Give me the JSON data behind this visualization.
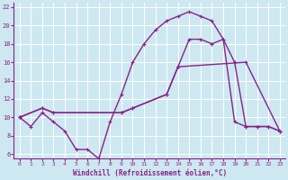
{
  "bg_color": "#cde8f0",
  "grid_color": "#b8d8e8",
  "line_color": "#882288",
  "xlabel": "Windchill (Refroidissement éolien,°C)",
  "xlim": [
    -0.5,
    23.5
  ],
  "ylim": [
    5.5,
    22.5
  ],
  "xticks": [
    0,
    1,
    2,
    3,
    4,
    5,
    6,
    7,
    8,
    9,
    10,
    11,
    12,
    13,
    14,
    15,
    16,
    17,
    18,
    19,
    20,
    21,
    22,
    23
  ],
  "yticks": [
    6,
    8,
    10,
    12,
    14,
    16,
    18,
    20,
    22
  ],
  "line1_x": [
    0,
    1,
    2,
    3,
    4,
    5,
    6,
    7,
    8,
    9,
    10,
    11,
    12,
    13,
    14,
    15,
    16,
    17,
    18,
    19,
    20,
    21,
    22,
    23
  ],
  "line1_y": [
    10,
    9,
    10.5,
    9.5,
    8.5,
    6.5,
    6.5,
    5.5,
    9.5,
    12.5,
    16,
    18,
    19.5,
    20.5,
    21,
    21.5,
    21,
    20.5,
    18.5,
    16,
    9,
    9,
    9,
    8.5
  ],
  "line2_x": [
    0,
    2,
    3,
    9,
    10,
    13,
    14,
    15,
    16,
    17,
    18,
    19,
    20,
    21,
    22,
    23
  ],
  "line2_y": [
    10,
    11,
    10.5,
    10.5,
    11,
    12.5,
    15.5,
    18.5,
    18.5,
    18,
    18.5,
    9.5,
    9,
    9,
    9,
    8.5
  ],
  "line3_x": [
    0,
    2,
    3,
    9,
    10,
    13,
    14,
    20,
    23
  ],
  "line3_y": [
    10,
    11,
    10.5,
    10.5,
    11,
    12.5,
    15.5,
    16,
    8.5
  ]
}
